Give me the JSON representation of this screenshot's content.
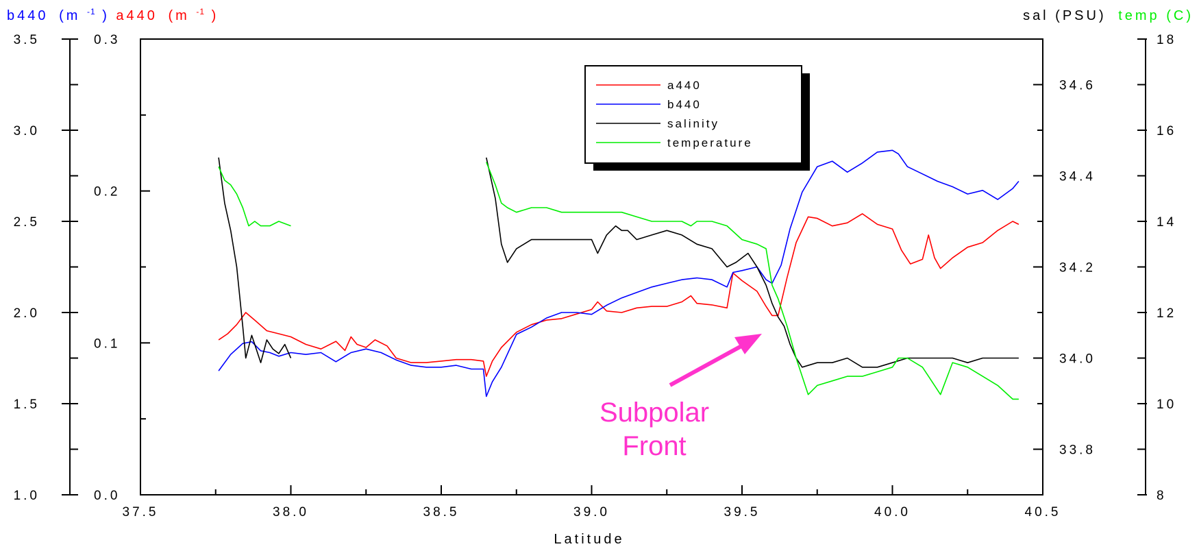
{
  "chart_data": {
    "type": "line",
    "xlabel": "Latitude",
    "xlim": [
      37.5,
      40.5
    ],
    "x_ticks": [
      "37.5",
      "38.0",
      "38.5",
      "39.0",
      "39.5",
      "40.0",
      "40.5"
    ],
    "axes": {
      "b440": {
        "title": "b440",
        "unit": "(m",
        "unit_exp": "-1",
        "unit_close": ")",
        "color": "#0000ff",
        "ylim": [
          1.0,
          3.5
        ],
        "ticks": [
          "1.0",
          "1.5",
          "2.0",
          "2.5",
          "3.0",
          "3.5"
        ]
      },
      "a440": {
        "title": "a440",
        "unit": "(m",
        "unit_exp": "-1",
        "unit_close": ")",
        "color": "#ff0000",
        "ylim": [
          0.0,
          0.3
        ],
        "ticks": [
          "0.0",
          "0.1",
          "0.2",
          "0.3"
        ]
      },
      "sal": {
        "title": "sal (PSU)",
        "color": "#000000",
        "ylim": [
          33.7,
          34.7
        ],
        "ticks": [
          "33.8",
          "34.0",
          "34.2",
          "34.4",
          "34.6"
        ]
      },
      "temp": {
        "title": "temp (C)",
        "color": "#00ee00",
        "ylim": [
          8,
          18
        ],
        "ticks": [
          "8",
          "10",
          "12",
          "14",
          "16",
          "18"
        ]
      }
    },
    "legend": {
      "position": "top-center"
    },
    "series": [
      {
        "name": "a440",
        "axis": "a440",
        "color": "#ff0000",
        "segments": [
          {
            "x": [
              37.76,
              37.79,
              37.82,
              37.85,
              37.88,
              37.92,
              37.96,
              38.0,
              38.05,
              38.1,
              38.15,
              38.18,
              38.2,
              38.22,
              38.25,
              38.28,
              38.32,
              38.35,
              38.4,
              38.45,
              38.5,
              38.55,
              38.6,
              38.64,
              38.65,
              38.67,
              38.7,
              38.75,
              38.8,
              38.85,
              38.9,
              38.95,
              39.0,
              39.02,
              39.05,
              39.1,
              39.15,
              39.2,
              39.25,
              39.3,
              39.33,
              39.35,
              39.4,
              39.45,
              39.47,
              39.5,
              39.55,
              39.58,
              39.6,
              39.62,
              39.65,
              39.68,
              39.72,
              39.75,
              39.8,
              39.85,
              39.9,
              39.95,
              40.0,
              40.03,
              40.06,
              40.1,
              40.12,
              40.14,
              40.16,
              40.2,
              40.25,
              40.3,
              40.35,
              40.4,
              40.42
            ],
            "y": [
              0.102,
              0.106,
              0.112,
              0.12,
              0.115,
              0.108,
              0.106,
              0.104,
              0.099,
              0.096,
              0.101,
              0.095,
              0.104,
              0.099,
              0.097,
              0.102,
              0.098,
              0.09,
              0.087,
              0.087,
              0.088,
              0.089,
              0.089,
              0.088,
              0.078,
              0.088,
              0.097,
              0.107,
              0.112,
              0.115,
              0.116,
              0.119,
              0.122,
              0.127,
              0.121,
              0.12,
              0.123,
              0.124,
              0.124,
              0.127,
              0.131,
              0.126,
              0.125,
              0.123,
              0.146,
              0.141,
              0.134,
              0.124,
              0.118,
              0.118,
              0.143,
              0.166,
              0.183,
              0.182,
              0.177,
              0.179,
              0.185,
              0.178,
              0.175,
              0.161,
              0.152,
              0.155,
              0.171,
              0.156,
              0.149,
              0.156,
              0.163,
              0.166,
              0.174,
              0.18,
              0.178
            ]
          }
        ]
      },
      {
        "name": "b440",
        "axis": "b440",
        "color": "#0000ff",
        "segments": [
          {
            "x": [
              37.76,
              37.8,
              37.84,
              37.87,
              37.9,
              37.93,
              37.96,
              38.0,
              38.05,
              38.1,
              38.15,
              38.2,
              38.25,
              38.3,
              38.35,
              38.4,
              38.45,
              38.5,
              38.55,
              38.6,
              38.64,
              38.65,
              38.67,
              38.7,
              38.75,
              38.8,
              38.85,
              38.9,
              38.95,
              39.0,
              39.05,
              39.1,
              39.15,
              39.2,
              39.25,
              39.3,
              39.35,
              39.4,
              39.45,
              39.47,
              39.5,
              39.55,
              39.58,
              39.6,
              39.63,
              39.66,
              39.7,
              39.75,
              39.8,
              39.85,
              39.9,
              39.95,
              40.0,
              40.02,
              40.05,
              40.1,
              40.15,
              40.2,
              40.25,
              40.3,
              40.35,
              40.4,
              40.42
            ],
            "y": [
              1.68,
              1.77,
              1.83,
              1.84,
              1.79,
              1.78,
              1.76,
              1.78,
              1.77,
              1.78,
              1.73,
              1.78,
              1.8,
              1.78,
              1.74,
              1.71,
              1.7,
              1.7,
              1.71,
              1.69,
              1.69,
              1.54,
              1.62,
              1.7,
              1.88,
              1.92,
              1.97,
              2.0,
              2.0,
              1.99,
              2.04,
              2.08,
              2.11,
              2.14,
              2.16,
              2.18,
              2.19,
              2.18,
              2.14,
              2.22,
              2.23,
              2.25,
              2.18,
              2.16,
              2.26,
              2.46,
              2.66,
              2.8,
              2.83,
              2.77,
              2.82,
              2.88,
              2.89,
              2.87,
              2.8,
              2.76,
              2.72,
              2.69,
              2.65,
              2.67,
              2.62,
              2.68,
              2.72
            ]
          }
        ]
      },
      {
        "name": "salinity",
        "axis": "sal",
        "color": "#000000",
        "segments": [
          {
            "x": [
              37.76,
              37.78,
              37.8,
              37.82,
              37.84,
              37.85,
              37.87,
              37.9,
              37.92,
              37.94,
              37.96,
              37.98,
              38.0
            ],
            "y": [
              34.44,
              34.34,
              34.28,
              34.2,
              34.07,
              34.0,
              34.05,
              33.99,
              34.04,
              34.02,
              34.01,
              34.03,
              34.0
            ]
          },
          {
            "x": [
              38.65,
              38.68,
              38.7,
              38.72,
              38.75,
              38.8,
              38.85,
              38.9,
              38.95,
              39.0,
              39.02,
              39.05,
              39.08,
              39.1,
              39.12,
              39.15,
              39.2,
              39.25,
              39.3,
              39.35,
              39.4,
              39.45,
              39.48,
              39.5,
              39.52,
              39.55,
              39.58,
              39.6,
              39.62,
              39.64,
              39.66,
              39.68,
              39.7,
              39.75,
              39.8,
              39.85,
              39.9,
              39.95,
              40.0,
              40.05,
              40.1,
              40.15,
              40.2,
              40.25,
              40.3,
              40.35,
              40.4,
              40.42
            ],
            "y": [
              34.44,
              34.35,
              34.25,
              34.21,
              34.24,
              34.26,
              34.26,
              34.26,
              34.26,
              34.26,
              34.23,
              34.27,
              34.29,
              34.28,
              34.28,
              34.26,
              34.27,
              34.28,
              34.27,
              34.25,
              34.24,
              34.2,
              34.21,
              34.22,
              34.23,
              34.2,
              34.16,
              34.12,
              34.09,
              34.07,
              34.03,
              34.0,
              33.98,
              33.99,
              33.99,
              34.0,
              33.98,
              33.98,
              33.99,
              34.0,
              34.0,
              34.0,
              34.0,
              33.99,
              34.0,
              34.0,
              34.0,
              34.0
            ]
          }
        ]
      },
      {
        "name": "temperature",
        "axis": "temp",
        "color": "#00ee00",
        "segments": [
          {
            "x": [
              37.76,
              37.78,
              37.8,
              37.82,
              37.84,
              37.86,
              37.88,
              37.9,
              37.93,
              37.96,
              38.0
            ],
            "y": [
              15.2,
              14.9,
              14.8,
              14.6,
              14.3,
              13.9,
              14.0,
              13.9,
              13.9,
              14.0,
              13.9
            ]
          },
          {
            "x": [
              38.65,
              38.68,
              38.7,
              38.72,
              38.75,
              38.8,
              38.85,
              38.9,
              38.95,
              39.0,
              39.05,
              39.1,
              39.15,
              39.2,
              39.25,
              39.3,
              39.33,
              39.35,
              39.4,
              39.45,
              39.5,
              39.55,
              39.58,
              39.6,
              39.62,
              39.65,
              39.68,
              39.7,
              39.72,
              39.75,
              39.8,
              39.85,
              39.9,
              39.95,
              40.0,
              40.02,
              40.05,
              40.1,
              40.12,
              40.14,
              40.16,
              40.2,
              40.25,
              40.3,
              40.35,
              40.4,
              40.42
            ],
            "y": [
              15.3,
              14.8,
              14.4,
              14.3,
              14.2,
              14.3,
              14.3,
              14.2,
              14.2,
              14.2,
              14.2,
              14.2,
              14.1,
              14.0,
              14.0,
              14.0,
              13.9,
              14.0,
              14.0,
              13.9,
              13.6,
              13.5,
              13.4,
              12.6,
              12.3,
              11.7,
              11.0,
              10.6,
              10.2,
              10.4,
              10.5,
              10.6,
              10.6,
              10.7,
              10.8,
              11.0,
              11.0,
              10.8,
              10.6,
              10.4,
              10.2,
              10.9,
              10.8,
              10.6,
              10.4,
              10.1,
              10.1
            ]
          }
        ]
      }
    ],
    "annotations": [
      {
        "text_lines": [
          "Subpolar",
          "Front"
        ],
        "color": "#ff33cc"
      }
    ]
  }
}
